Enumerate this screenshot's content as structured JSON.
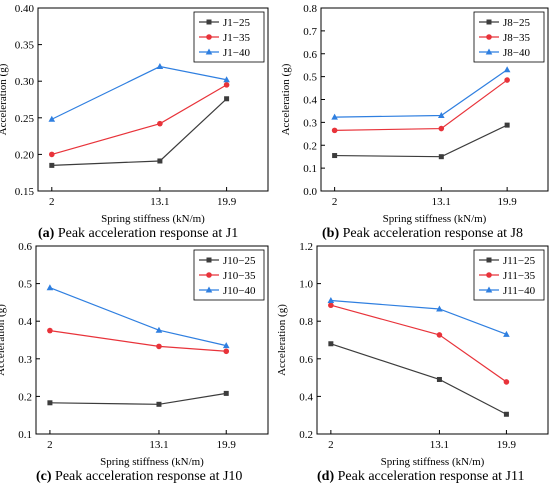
{
  "colors": {
    "J25": "#3c3c3c",
    "J35": "#e8333a",
    "J40": "#2f7fe0"
  },
  "panels": [
    {
      "caption_letter": "(a)",
      "caption_text": " Peak acceleration response at J1",
      "chart_data": {
        "type": "line",
        "x": [
          2,
          13.1,
          19.9
        ],
        "xticks": [
          "2",
          "13.1",
          "19.9"
        ],
        "xlabel": "Spring stiffness (kN/m)",
        "ylabel": "Acceleration (g)",
        "ylim": [
          0.15,
          0.4
        ],
        "yticks": [
          "0.15",
          "0.20",
          "0.25",
          "0.30",
          "0.35",
          "0.40"
        ],
        "legend": "top-right",
        "grid": false,
        "series": [
          {
            "name": "J1−25",
            "marker": "square",
            "color": "#3c3c3c",
            "values": [
              0.185,
              0.191,
              0.276
            ]
          },
          {
            "name": "J1−35",
            "marker": "circle",
            "color": "#e8333a",
            "values": [
              0.2,
              0.242,
              0.295
            ]
          },
          {
            "name": "J1−40",
            "marker": "triangle",
            "color": "#2f7fe0",
            "values": [
              0.248,
              0.32,
              0.302
            ]
          }
        ]
      }
    },
    {
      "caption_letter": "(b)",
      "caption_text": " Peak acceleration response at J8",
      "chart_data": {
        "type": "line",
        "x": [
          2,
          13.1,
          19.9
        ],
        "xticks": [
          "2",
          "13.1",
          "19.9"
        ],
        "xlabel": "Spring stiffness (kN/m)",
        "ylabel": "Acceleration (g)",
        "ylim": [
          0.0,
          0.8
        ],
        "yticks": [
          "0.0",
          "0.1",
          "0.2",
          "0.3",
          "0.4",
          "0.5",
          "0.6",
          "0.7",
          "0.8"
        ],
        "legend": "top-right",
        "grid": false,
        "series": [
          {
            "name": "J8−25",
            "marker": "square",
            "color": "#3c3c3c",
            "values": [
              0.155,
              0.15,
              0.288
            ]
          },
          {
            "name": "J8−35",
            "marker": "circle",
            "color": "#e8333a",
            "values": [
              0.265,
              0.273,
              0.485
            ]
          },
          {
            "name": "J8−40",
            "marker": "triangle",
            "color": "#2f7fe0",
            "values": [
              0.323,
              0.33,
              0.53
            ]
          }
        ]
      }
    },
    {
      "caption_letter": "(c)",
      "caption_text": " Peak acceleration response at J10",
      "chart_data": {
        "type": "line",
        "x": [
          2,
          13.1,
          19.9
        ],
        "xticks": [
          "2",
          "13.1",
          "19.9"
        ],
        "xlabel": "Spring stiffness (kN/m)",
        "ylabel": "Acceleration (g)",
        "ylim": [
          0.1,
          0.6
        ],
        "yticks": [
          "0.1",
          "0.2",
          "0.3",
          "0.4",
          "0.5",
          "0.6"
        ],
        "legend": "top-right",
        "grid": false,
        "series": [
          {
            "name": "J10−25",
            "marker": "square",
            "color": "#3c3c3c",
            "values": [
              0.183,
              0.179,
              0.208
            ]
          },
          {
            "name": "J10−35",
            "marker": "circle",
            "color": "#e8333a",
            "values": [
              0.375,
              0.333,
              0.32
            ]
          },
          {
            "name": "J10−40",
            "marker": "triangle",
            "color": "#2f7fe0",
            "values": [
              0.489,
              0.376,
              0.335
            ]
          }
        ]
      }
    },
    {
      "caption_letter": "(d)",
      "caption_text": " Peak acceleration response at J11",
      "chart_data": {
        "type": "line",
        "x": [
          2,
          13.1,
          19.9
        ],
        "xticks": [
          "2",
          "13.1",
          "19.9"
        ],
        "xlabel": "Spring stiffness (kN/m)",
        "ylabel": "Acceleration (g)",
        "ylim": [
          0.2,
          1.2
        ],
        "yticks": [
          "0.2",
          "0.4",
          "0.6",
          "0.8",
          "1.0",
          "1.2"
        ],
        "legend": "top-right",
        "grid": false,
        "series": [
          {
            "name": "J11−25",
            "marker": "square",
            "color": "#3c3c3c",
            "values": [
              0.68,
              0.49,
              0.305
            ]
          },
          {
            "name": "J11−35",
            "marker": "circle",
            "color": "#e8333a",
            "values": [
              0.885,
              0.727,
              0.477
            ]
          },
          {
            "name": "J11−40",
            "marker": "triangle",
            "color": "#2f7fe0",
            "values": [
              0.91,
              0.865,
              0.73
            ]
          }
        ]
      }
    }
  ]
}
